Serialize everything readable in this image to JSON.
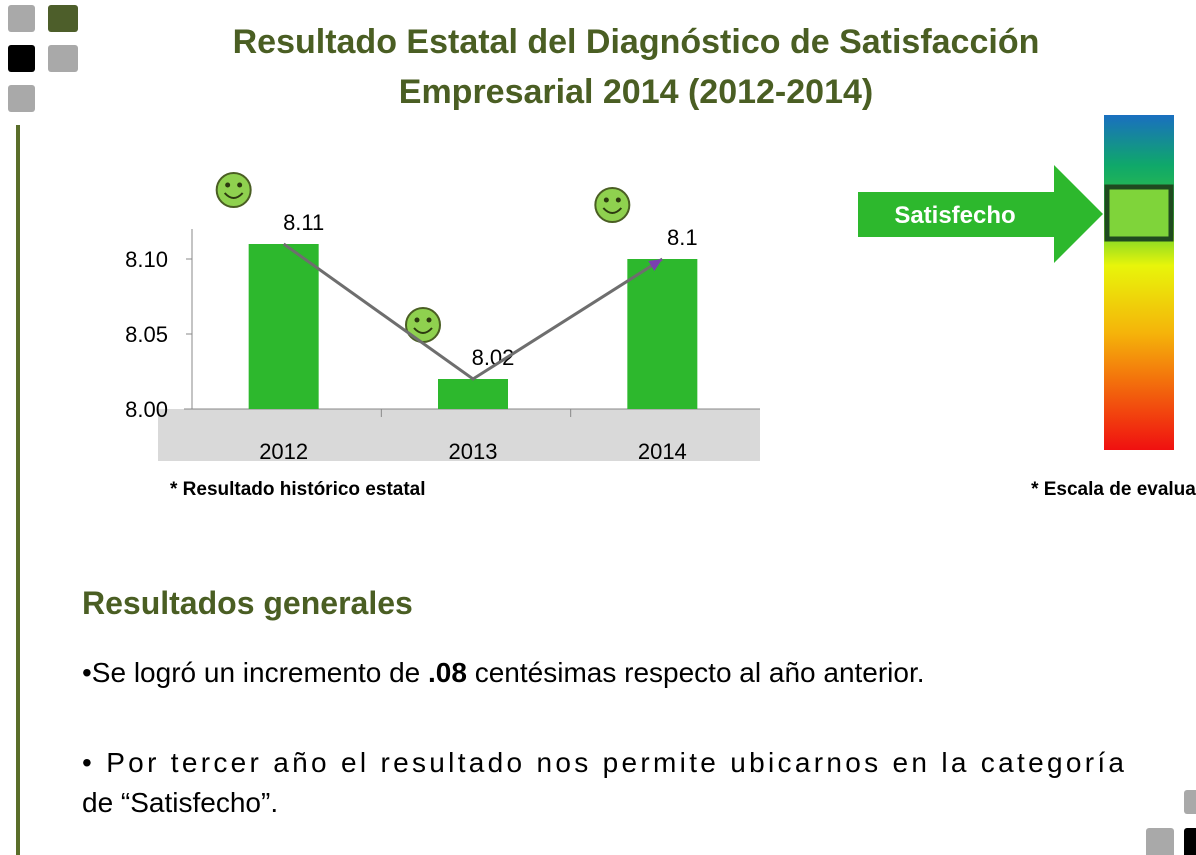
{
  "header": {
    "title_lines": [
      "Resultado Estatal del Diagnóstico de Satisfacción",
      "Empresarial 2014 (2012-2014)"
    ]
  },
  "chart_data": {
    "type": "bar",
    "categories": [
      "2012",
      "2013",
      "2014"
    ],
    "values": [
      8.11,
      8.02,
      8.1
    ],
    "color": "#2db82d",
    "trend_color": "#6e6e6e",
    "ylim": [
      8.0,
      8.12
    ],
    "yticks": [
      {
        "value": 8.0,
        "label": "8.00"
      },
      8.05,
      {
        "value": 8.1,
        "label": "8.10"
      }
    ],
    "note": "* Resultado histórico estatal"
  },
  "scale": {
    "label": "Satisfecho",
    "note": "* Escala de evaluación"
  },
  "results": {
    "heading": "Resultados generales",
    "bullet_1": {
      "before": "•Se logró un incremento de ",
      "bold": ".08",
      "after": " centésimas respecto al año anterior."
    },
    "bullet_2_lines": [
      "• Por tercer año el resultado nos permite ubicarnos en la categoría",
      "de “Satisfecho”."
    ]
  }
}
